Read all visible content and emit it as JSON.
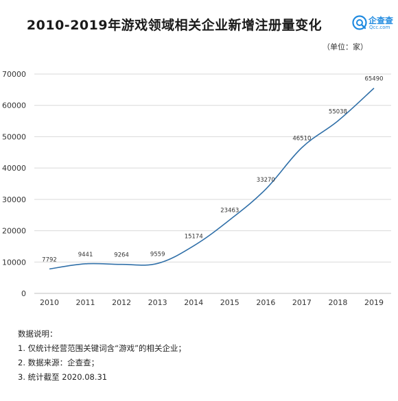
{
  "header": {
    "title": "2010-2019年游戏领域相关企业新增注册量变化",
    "unit": "（单位：家）",
    "logo_name": "企查查",
    "logo_sub": "Qcc.com"
  },
  "notes": {
    "heading": "数据说明：",
    "items": [
      "1. 仅统计经营范围关键词含“游戏”的相关企业；",
      "2. 数据来源：企查查；",
      "3. 统计截至 2020.08.31"
    ]
  },
  "colors": {
    "line": "#2f6fa8",
    "grid": "#d9d9d9",
    "logo": "#1f8ae0"
  },
  "chart_data": {
    "type": "line",
    "title": "2010-2019年游戏领域相关企业新增注册量变化",
    "xlabel": "",
    "ylabel": "",
    "x": [
      "2010",
      "2011",
      "2012",
      "2013",
      "2014",
      "2015",
      "2016",
      "2017",
      "2018",
      "2019"
    ],
    "series": [
      {
        "values": [
          7792,
          9441,
          9264,
          9559,
          15174,
          23463,
          33270,
          46510,
          55038,
          65490
        ]
      }
    ],
    "ylim": [
      0,
      70000
    ],
    "yticks": [
      "0",
      "10000",
      "20000",
      "30000",
      "40000",
      "50000",
      "60000",
      "70000"
    ],
    "grid": true,
    "smooth": true
  }
}
